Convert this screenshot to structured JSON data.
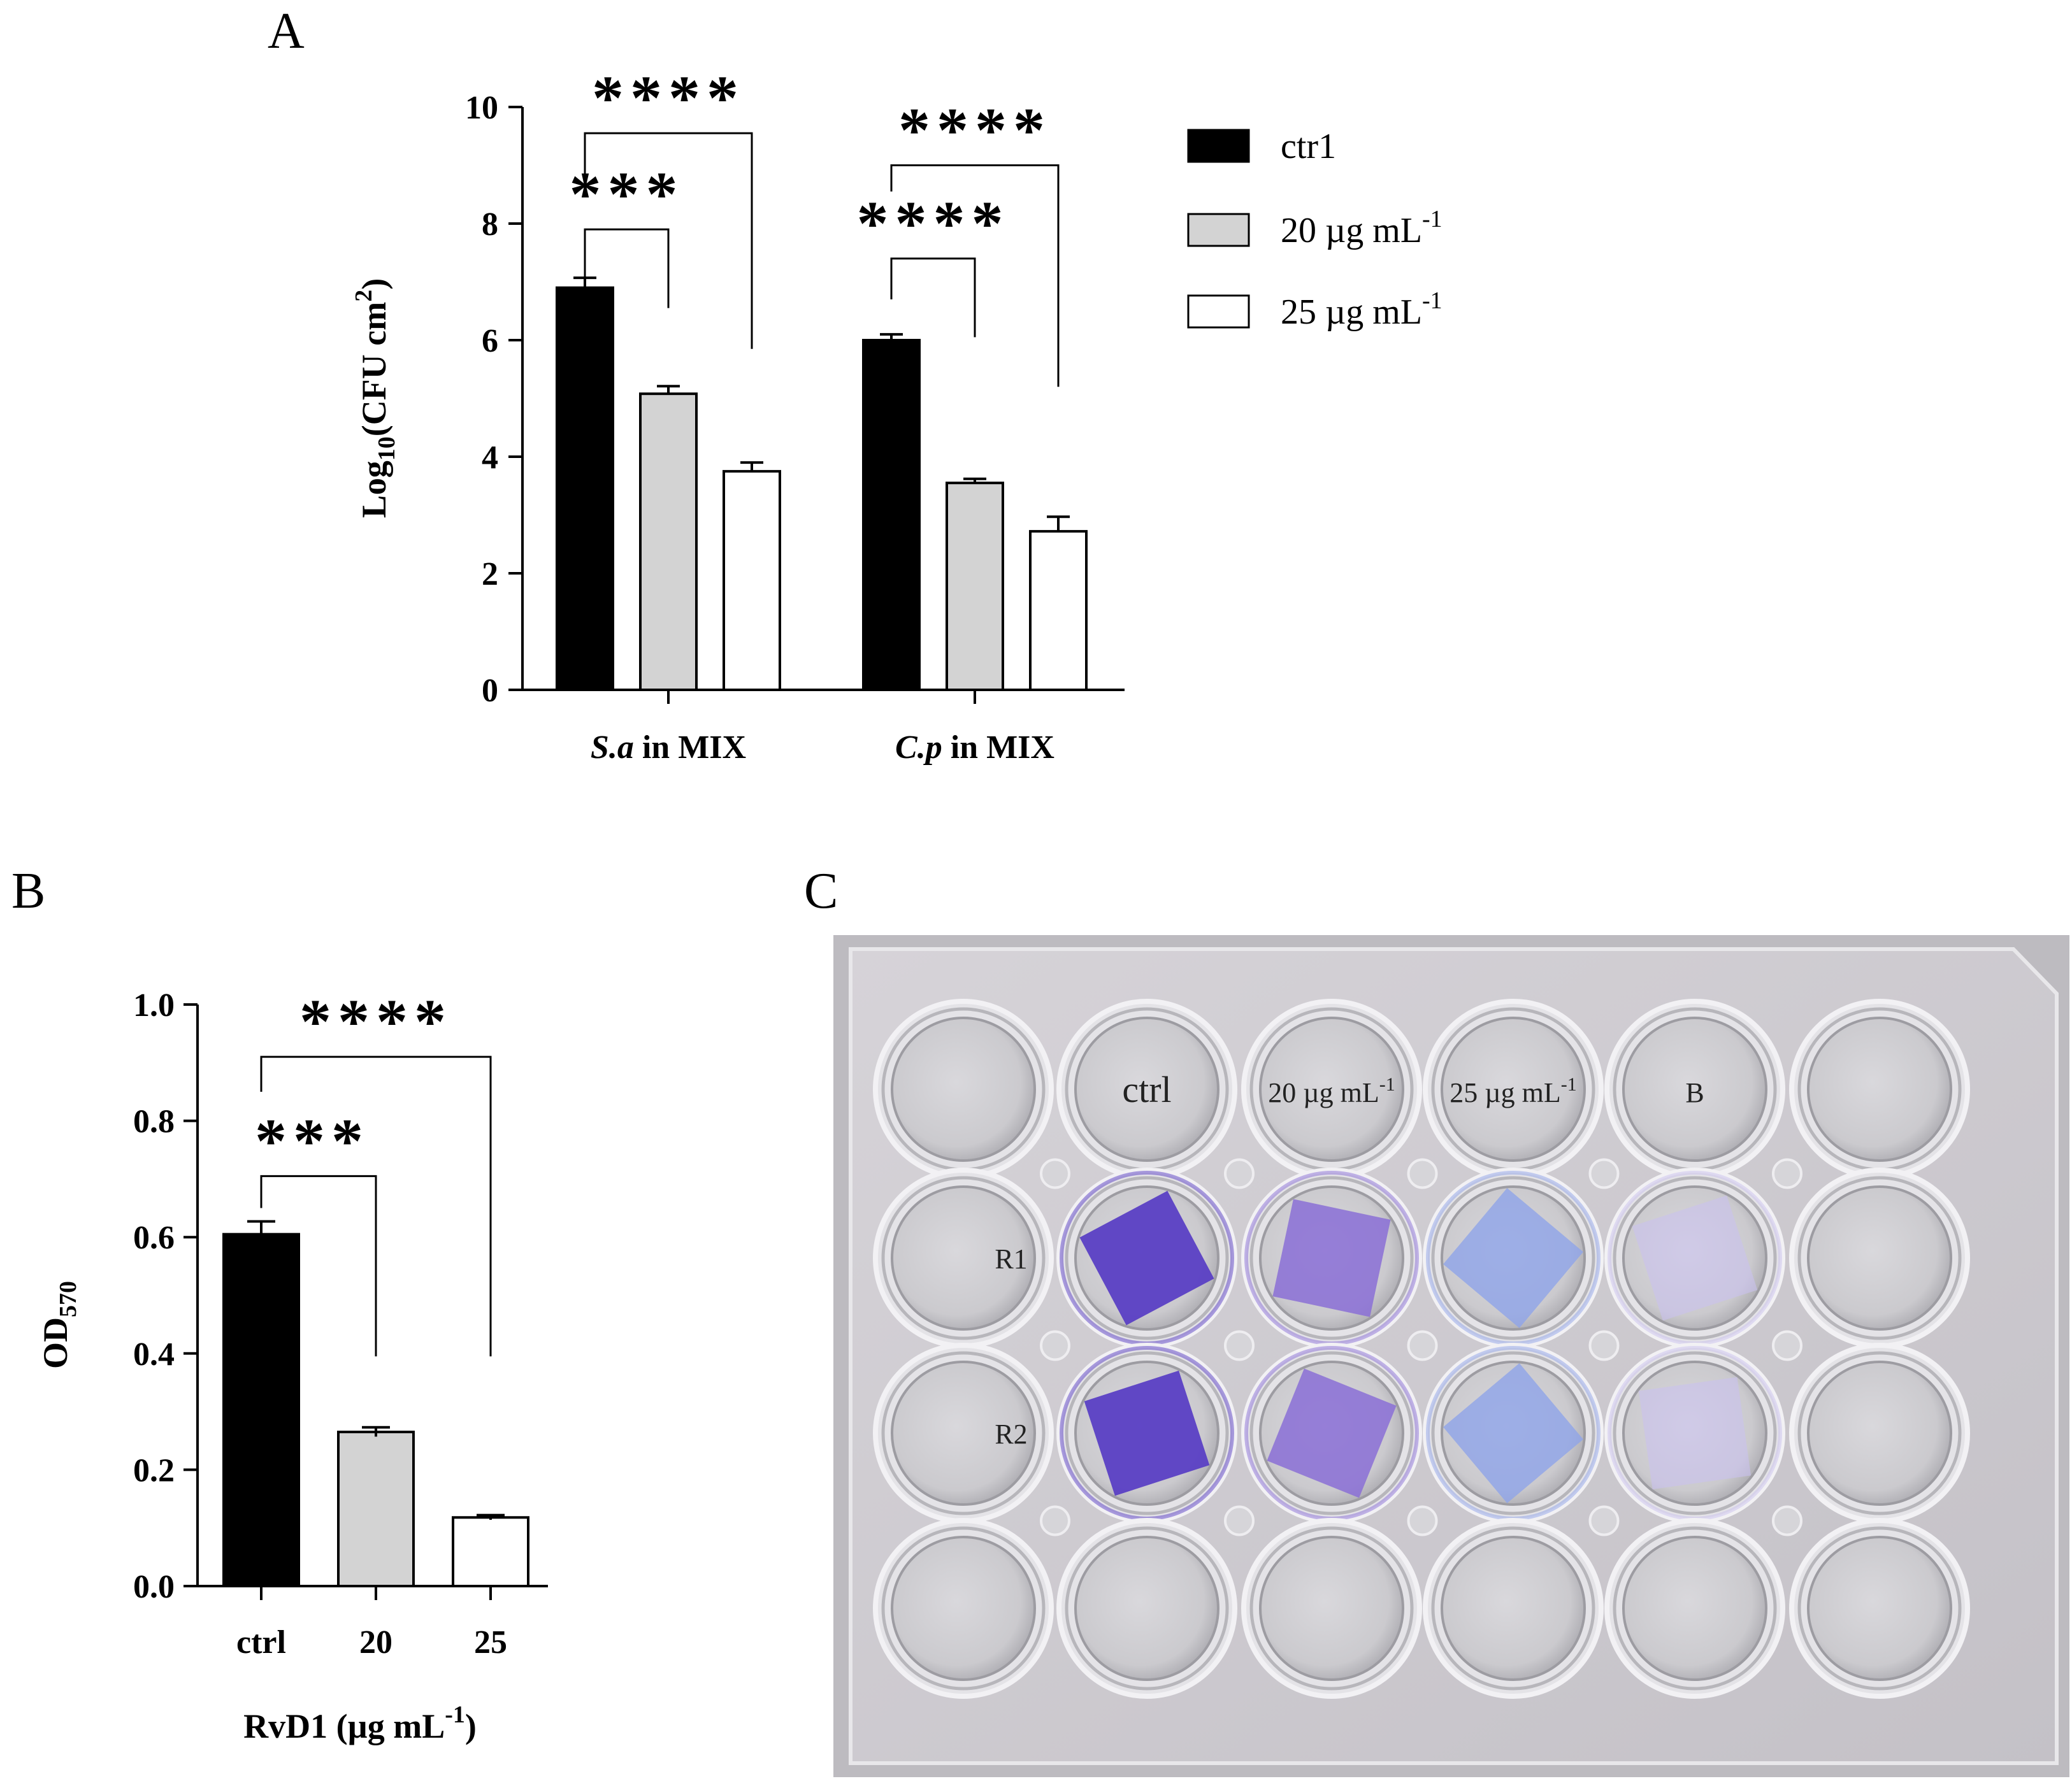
{
  "panels": {
    "a": "A",
    "b": "B",
    "c": "C"
  },
  "chart_data": [
    {
      "id": "A",
      "type": "bar",
      "categories": [
        "S.a in MIX",
        "C.p in MIX"
      ],
      "category_parts": [
        {
          "italic": "S.a",
          "rest": " in MIX"
        },
        {
          "italic": "C.p",
          "rest": " in MIX"
        }
      ],
      "series": [
        {
          "name": "ctr1",
          "color": "#000000",
          "values": [
            6.9,
            6.0
          ],
          "errors": [
            0.17,
            0.1
          ]
        },
        {
          "name": "20 µg mL-1",
          "color": "#d3d3d3",
          "values": [
            5.08,
            3.55
          ],
          "errors": [
            0.13,
            0.07
          ]
        },
        {
          "name": "25 µg mL-1",
          "color": "#ffffff",
          "values": [
            3.75,
            2.72
          ],
          "errors": [
            0.15,
            0.25
          ]
        }
      ],
      "legend": [
        {
          "base": "ctr1",
          "sup": ""
        },
        {
          "base": "20 µg mL",
          "sup": "-1"
        },
        {
          "base": "25 µg mL",
          "sup": "-1"
        }
      ],
      "ylabel": {
        "base": "Log",
        "sub": "10",
        "mid": "(CFU cm",
        "sup": "2",
        "end": ")"
      },
      "ylim": [
        0,
        10
      ],
      "yticks": [
        "0",
        "2",
        "4",
        "6",
        "8",
        "10"
      ],
      "significance": [
        {
          "group": 0,
          "to_series": 1,
          "label": "***",
          "top": 7.9,
          "left_end": 6.95,
          "right_end": 6.55
        },
        {
          "group": 0,
          "to_series": 2,
          "label": "****",
          "top": 9.55,
          "left_end": 8.75,
          "right_end": 5.85
        },
        {
          "group": 1,
          "to_series": 1,
          "label": "****",
          "top": 7.4,
          "left_end": 6.7,
          "right_end": 6.05
        },
        {
          "group": 1,
          "to_series": 2,
          "label": "****",
          "top": 9.0,
          "left_end": 8.55,
          "right_end": 5.2
        }
      ]
    },
    {
      "id": "B",
      "type": "bar",
      "categories": [
        "ctrl",
        "20",
        "25"
      ],
      "values": [
        0.605,
        0.265,
        0.118
      ],
      "errors": [
        0.022,
        0.008,
        0.004
      ],
      "colors": [
        "#000000",
        "#d3d3d3",
        "#ffffff"
      ],
      "ylabel": {
        "base": "OD",
        "sub": "570"
      },
      "xlabel": {
        "base": "RvD1 (µg mL",
        "sup": "-1",
        "end": ")"
      },
      "ylim": [
        0,
        1.0
      ],
      "yticks": [
        "0.0",
        "0.2",
        "0.4",
        "0.6",
        "0.8",
        "1.0"
      ],
      "significance": [
        {
          "from_bar": 0,
          "to_bar": 1,
          "label": "***",
          "top": 0.705,
          "left_end": 0.65,
          "right_end": 0.395
        },
        {
          "from_bar": 0,
          "to_bar": 2,
          "label": "****",
          "top": 0.91,
          "left_end": 0.85,
          "right_end": 0.395
        }
      ]
    }
  ],
  "plate": {
    "rows": 4,
    "cols": 6,
    "column_labels": [
      {
        "col": 1,
        "base": "ctrl",
        "sup": ""
      },
      {
        "col": 2,
        "base": "20 µg mL",
        "sup": "-1"
      },
      {
        "col": 3,
        "base": "25 µg mL",
        "sup": "-1"
      },
      {
        "col": 4,
        "base": "B",
        "sup": ""
      }
    ],
    "row_labels": [
      {
        "row": 1,
        "text": "R1"
      },
      {
        "row": 2,
        "text": "R2"
      }
    ],
    "stain_colors": [
      "#5a3fc4",
      "#8a6fd6",
      "#8fa4e8",
      "#c9c2ee"
    ],
    "stain_opacity": [
      0.95,
      0.85,
      0.8,
      0.6
    ]
  }
}
